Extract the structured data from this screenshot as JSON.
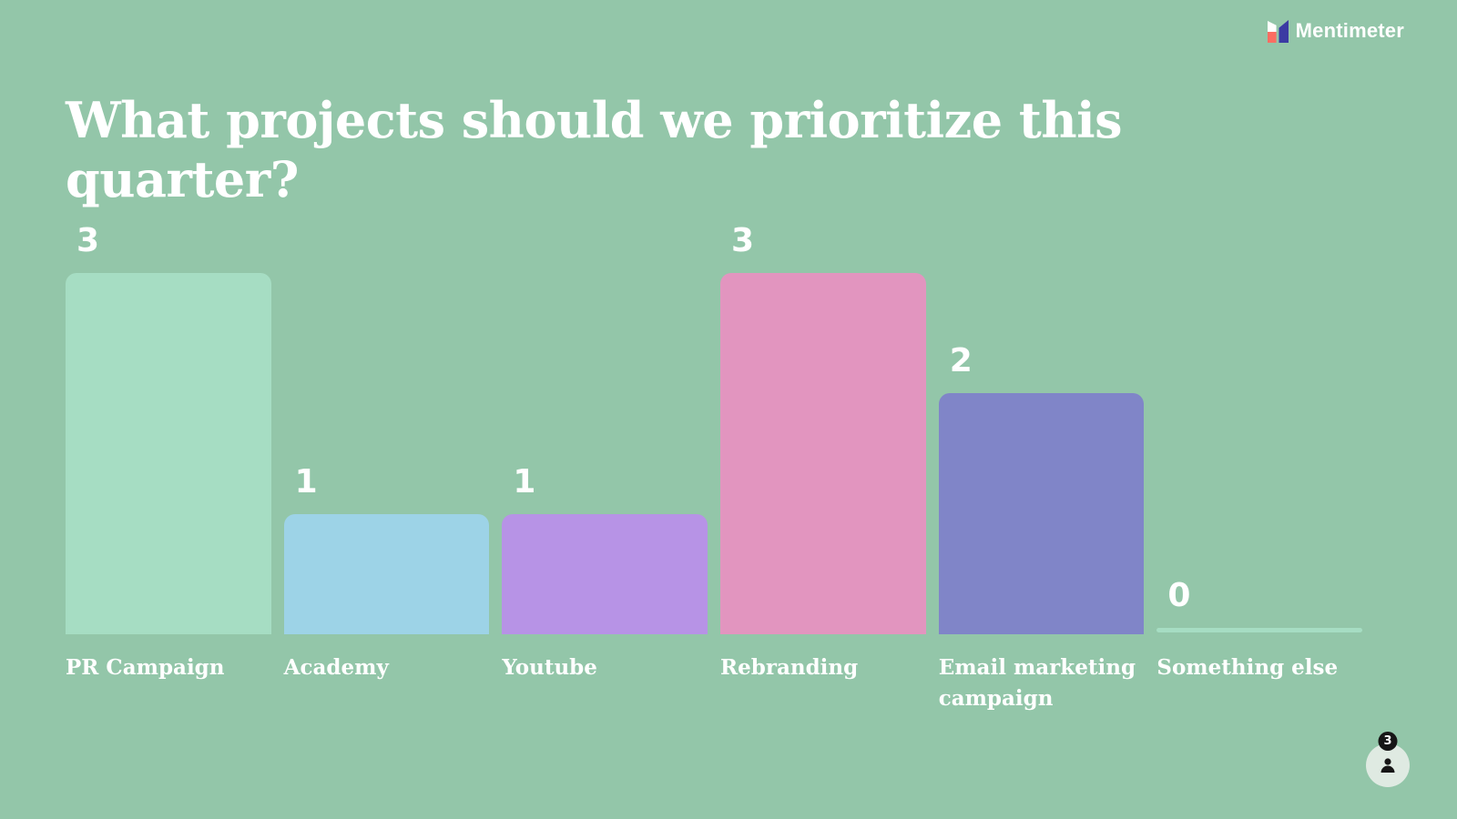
{
  "page": {
    "background": "#93c6a9"
  },
  "brand": {
    "name": "Mentimeter"
  },
  "title": "What projects should we prioritize this quarter?",
  "chart_data": {
    "type": "bar",
    "title": "What projects should we prioritize this quarter?",
    "categories": [
      "PR Campaign",
      "Academy",
      "Youtube",
      "Rebranding",
      "Email marketing campaign",
      "Something else"
    ],
    "values": [
      3,
      1,
      1,
      3,
      2,
      0
    ],
    "bar_colors": [
      "#a6ddc3",
      "#9dd3e7",
      "#b793e6",
      "#e295bf",
      "#8085c8",
      "#a6ddc3"
    ],
    "value_label_color": "#ffffff",
    "category_label_color": "#ffffff",
    "ylim": [
      0,
      3
    ],
    "grid": false,
    "legend": false,
    "value_labels": true
  },
  "participants": {
    "count": "3"
  }
}
